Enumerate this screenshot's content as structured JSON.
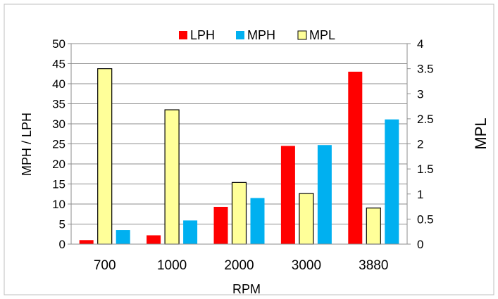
{
  "chart_data": {
    "type": "bar",
    "categories": [
      "700",
      "1000",
      "2000",
      "3000",
      "3880"
    ],
    "series": [
      {
        "name": "LPH",
        "axis": "left",
        "color": "#ff0000",
        "values": [
          1.0,
          2.2,
          9.3,
          24.5,
          43.0
        ]
      },
      {
        "name": "MPH",
        "axis": "left",
        "color": "#00b0f0",
        "values": [
          3.5,
          5.9,
          11.5,
          24.7,
          31.1
        ]
      },
      {
        "name": "MPL",
        "axis": "right",
        "color": "#ffff99",
        "stroke": "#000000",
        "values": [
          3.5,
          2.68,
          1.23,
          1.01,
          0.72
        ]
      }
    ],
    "xlabel": "RPM",
    "ylabel": "MPH / LPH",
    "y2label": "MPL",
    "ylim": [
      0,
      50
    ],
    "y2lim": [
      0,
      4
    ],
    "yticks": [
      "0",
      "5",
      "10",
      "15",
      "20",
      "25",
      "30",
      "35",
      "40",
      "45",
      "50"
    ],
    "y2ticks": [
      "0",
      "0.5",
      "1",
      "1.5",
      "2",
      "2.5",
      "3",
      "3.5",
      "4"
    ],
    "grid": true,
    "legend_position": "top"
  }
}
